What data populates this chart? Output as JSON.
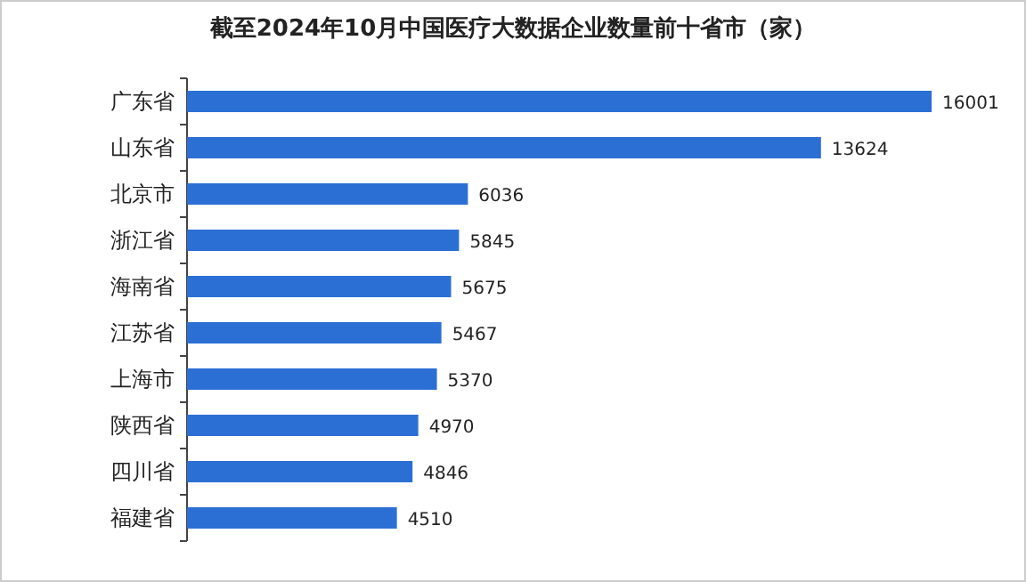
{
  "chart_data": {
    "type": "bar",
    "orientation": "horizontal",
    "title": "截至2024年10月中国医疗大数据企业数量前十省市（家）",
    "categories": [
      "广东省",
      "山东省",
      "北京市",
      "浙江省",
      "海南省",
      "江苏省",
      "上海市",
      "陕西省",
      "四川省",
      "福建省"
    ],
    "values": [
      16001,
      13624,
      6036,
      5845,
      5675,
      5467,
      5370,
      4970,
      4846,
      4510
    ],
    "color": "#2c6fd4",
    "data_labels": true
  }
}
